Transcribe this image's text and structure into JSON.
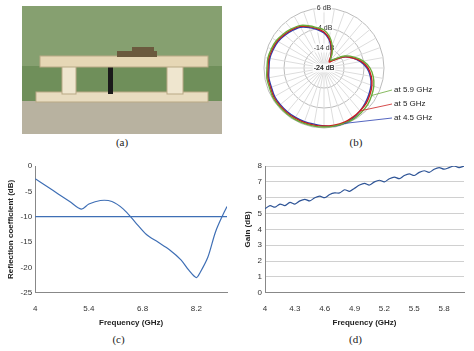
{
  "photo": {
    "caption": "(a)"
  },
  "chart_data": [
    {
      "type": "polar",
      "caption": "(b)",
      "x": [
        0,
        10,
        20,
        30,
        40,
        50,
        60,
        70,
        80,
        90,
        100,
        110,
        120,
        130,
        140,
        150,
        160,
        170,
        180,
        190,
        200,
        210,
        220,
        230,
        240,
        250,
        260,
        270,
        280,
        290,
        300,
        310,
        320,
        330,
        340,
        350
      ],
      "ylim": [
        -24,
        6
      ],
      "yticks": [
        {
          "value": -24,
          "label": "-24 dB"
        },
        {
          "value": -14,
          "label": "-14 dB"
        },
        {
          "value": -4,
          "label": "-4 dB"
        },
        {
          "value": 6,
          "label": "6 dB"
        }
      ],
      "grid": true,
      "tick_labels": "y",
      "series": [
        {
          "name": "at 5.9 GHz",
          "color": "#6aaa3a",
          "values": [
            -5,
            -8,
            -12,
            -16,
            -19,
            -17,
            -12,
            -8,
            -4,
            -1,
            1,
            2.5,
            3.5,
            4.5,
            5,
            5.5,
            5.5,
            5.5,
            5.5,
            5.5,
            5.5,
            5.5,
            5.5,
            5.5,
            5.5,
            5,
            5,
            4.5,
            4.5,
            4,
            3.5,
            2.5,
            1.5,
            0.5,
            -1.5,
            -3.5
          ]
        },
        {
          "name": "at 5 GHz",
          "color": "#cc1f1f",
          "values": [
            -6,
            -9,
            -13,
            -17,
            -20,
            -18,
            -13,
            -9,
            -5,
            -2,
            0,
            1.5,
            2.5,
            3.5,
            4,
            4.5,
            5,
            5,
            5,
            5,
            5,
            5,
            5,
            5,
            5,
            4.5,
            4.5,
            4,
            4,
            3.5,
            3,
            2,
            1,
            0,
            -2,
            -4
          ]
        },
        {
          "name": "at 4.5 GHz",
          "color": "#2a3fb0",
          "values": [
            -6.5,
            -9.5,
            -13.5,
            -17,
            -19,
            -17.5,
            -13,
            -9,
            -5.5,
            -2.5,
            -0.5,
            1,
            2,
            3,
            4,
            5,
            5.5,
            5.5,
            5,
            4.5,
            4.5,
            4.5,
            4.5,
            4.5,
            4.5,
            4,
            4,
            3.5,
            3.5,
            3,
            2.5,
            1.5,
            0.5,
            -0.5,
            -2.5,
            -4.5
          ]
        }
      ]
    },
    {
      "type": "line",
      "caption": "(c)",
      "x_label": "Frequency (GHz)",
      "y_label": "Reflection coefficient (dB)",
      "x": [
        4,
        4.3,
        4.6,
        4.9,
        5.2,
        5.4,
        5.7,
        6,
        6.3,
        6.6,
        6.9,
        7.2,
        7.5,
        7.8,
        8,
        8.2,
        8.3,
        8.5,
        8.7,
        8.9,
        9
      ],
      "values": [
        -2.5,
        -4,
        -5.5,
        -7,
        -8.5,
        -7.5,
        -6.8,
        -7,
        -8.5,
        -11,
        -13.5,
        -15,
        -16.5,
        -18.5,
        -20.5,
        -22,
        -21,
        -18,
        -13,
        -9.5,
        -8
      ],
      "color": "#3f6fb5",
      "threshold": -10,
      "xlim": [
        4,
        9
      ],
      "xticks": [
        4,
        5.4,
        6.8,
        8.2
      ],
      "ylim": [
        -25,
        0
      ],
      "yticks": [
        -25,
        -20,
        -15,
        -10,
        -5,
        0
      ],
      "grid": false
    },
    {
      "type": "line",
      "caption": "(d)",
      "x_label": "Frequency (GHz)",
      "y_label": "Gain (dB)",
      "x": [
        4,
        4.05,
        4.1,
        4.15,
        4.2,
        4.25,
        4.3,
        4.35,
        4.4,
        4.45,
        4.5,
        4.55,
        4.6,
        4.65,
        4.7,
        4.75,
        4.8,
        4.85,
        4.9,
        4.95,
        5,
        5.05,
        5.1,
        5.15,
        5.2,
        5.25,
        5.3,
        5.35,
        5.4,
        5.45,
        5.5,
        5.55,
        5.6,
        5.65,
        5.7,
        5.75,
        5.8,
        5.85,
        5.9,
        5.95,
        6
      ],
      "values": [
        5.3,
        5.5,
        5.4,
        5.6,
        5.5,
        5.7,
        5.6,
        5.8,
        5.9,
        5.8,
        6.0,
        6.1,
        6.0,
        6.2,
        6.3,
        6.3,
        6.5,
        6.4,
        6.6,
        6.8,
        6.9,
        6.8,
        7.0,
        7.1,
        7.0,
        7.2,
        7.3,
        7.2,
        7.4,
        7.5,
        7.4,
        7.6,
        7.7,
        7.6,
        7.8,
        7.9,
        7.8,
        7.9,
        8.0,
        7.9,
        8.0
      ],
      "color": "#2f5597",
      "xlim": [
        4,
        6
      ],
      "xticks": [
        4,
        4.3,
        4.6,
        4.9,
        5.2,
        5.5,
        5.8
      ],
      "ylim": [
        0,
        8
      ],
      "yticks": [
        0,
        1,
        2,
        3,
        4,
        5,
        6,
        7,
        8
      ],
      "grid": true
    }
  ]
}
